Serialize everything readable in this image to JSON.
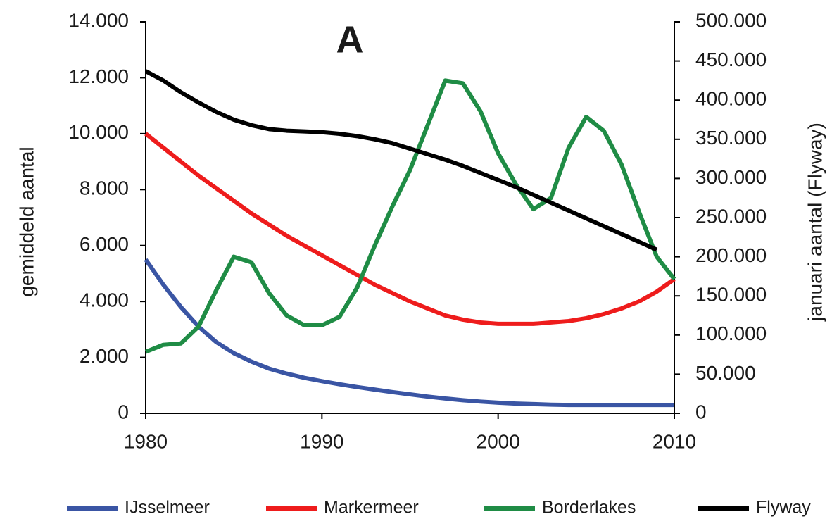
{
  "chart_data": {
    "type": "line",
    "title": "A",
    "ylabel": "gemiddeld aantal",
    "y2label": "januari aantal (Flyway)",
    "x": [
      1980,
      1981,
      1982,
      1983,
      1984,
      1985,
      1986,
      1987,
      1988,
      1989,
      1990,
      1991,
      1992,
      1993,
      1994,
      1995,
      1996,
      1997,
      1998,
      1999,
      2000,
      2001,
      2002,
      2003,
      2004,
      2005,
      2006,
      2007,
      2008,
      2009,
      2010
    ],
    "xlim": [
      1980,
      2010
    ],
    "xticks": [
      1980,
      1990,
      2000,
      2010
    ],
    "ylim": [
      0,
      14000
    ],
    "yticks": [
      0,
      {
        "value": 2000,
        "label": "2.000"
      },
      {
        "value": 4000,
        "label": "4.000"
      },
      {
        "value": 6000,
        "label": "6.000"
      },
      {
        "value": 8000,
        "label": "8.000"
      },
      {
        "value": 10000,
        "label": "10.000"
      },
      {
        "value": 12000,
        "label": "12.000"
      },
      {
        "value": 14000,
        "label": "14.000"
      }
    ],
    "y2lim": [
      0,
      500000
    ],
    "y2ticks": [
      0,
      {
        "value": 50000,
        "label": "50.000"
      },
      {
        "value": 100000,
        "label": "100.000"
      },
      {
        "value": 150000,
        "label": "150.000"
      },
      {
        "value": 200000,
        "label": "200.000"
      },
      {
        "value": 250000,
        "label": "250.000"
      },
      {
        "value": 300000,
        "label": "300.000"
      },
      {
        "value": 350000,
        "label": "350.000"
      },
      {
        "value": 400000,
        "label": "400.000"
      },
      {
        "value": 450000,
        "label": "450.000"
      },
      {
        "value": 500000,
        "label": "500.000"
      }
    ],
    "grid": false,
    "legend": "bottom",
    "series": [
      {
        "name": "IJsselmeer",
        "color": "#3a55a4",
        "values": [
          5500,
          4600,
          3800,
          3100,
          2550,
          2150,
          1850,
          1600,
          1420,
          1270,
          1150,
          1040,
          940,
          850,
          760,
          680,
          600,
          530,
          470,
          420,
          380,
          350,
          330,
          310,
          300,
          300,
          300,
          300,
          300,
          300,
          300
        ]
      },
      {
        "name": "Markermeer",
        "color": "#ee1c1c",
        "values": [
          10000,
          9500,
          9000,
          8500,
          8050,
          7600,
          7150,
          6750,
          6350,
          6000,
          5650,
          5300,
          4950,
          4600,
          4300,
          4000,
          3750,
          3500,
          3350,
          3250,
          3200,
          3200,
          3200,
          3250,
          3300,
          3400,
          3550,
          3750,
          4000,
          4350,
          4800
        ]
      },
      {
        "name": "Borderlakes",
        "color": "#1f8c45",
        "values": [
          2200,
          2450,
          2500,
          3100,
          4400,
          5600,
          5400,
          4300,
          3500,
          3150,
          3150,
          3450,
          4500,
          6000,
          7400,
          8700,
          10300,
          11900,
          11800,
          10800,
          9300,
          8200,
          7300,
          7700,
          9500,
          10600,
          10100,
          8900,
          7200,
          5600,
          4800
        ]
      },
      {
        "name": "Flyway",
        "color": "#000000",
        "axis": "y2",
        "values": [
          437000,
          425000,
          410000,
          397000,
          385000,
          375000,
          368000,
          363000,
          361000,
          360000,
          359000,
          357000,
          354000,
          350000,
          345000,
          338000,
          331000,
          324000,
          316000,
          307000,
          298000,
          289000,
          279000,
          269000,
          259000,
          249000,
          239000,
          229000,
          219000,
          209000,
          null
        ]
      }
    ]
  }
}
